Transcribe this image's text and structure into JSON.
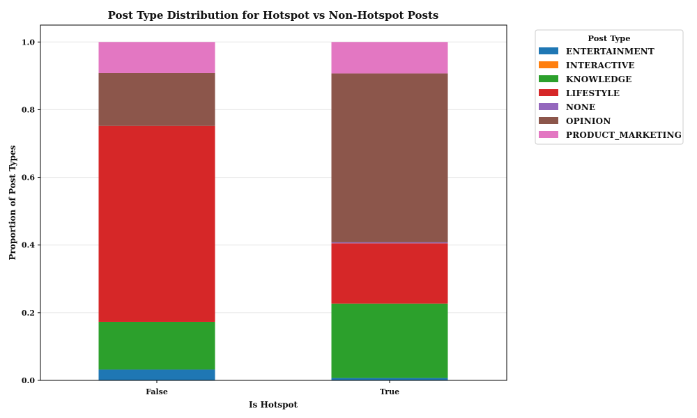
{
  "chart_data": {
    "type": "bar",
    "stacked": true,
    "title": "Post Type Distribution for Hotspot vs Non-Hotspot Posts",
    "xlabel": "Is Hotspot",
    "ylabel": "Proportion of Post Types",
    "categories": [
      "False",
      "True"
    ],
    "ylim": [
      0,
      1.05
    ],
    "yticks": [
      "0.0",
      "0.2",
      "0.4",
      "0.6",
      "0.8",
      "1.0"
    ],
    "ytick_values": [
      0,
      0.2,
      0.4,
      0.6,
      0.8,
      1.0
    ],
    "grid": true,
    "legend": {
      "title": "Post Type",
      "placement": "outside-right-top"
    },
    "series": [
      {
        "name": "ENTERTAINMENT",
        "color": "#1f77b4",
        "values": [
          0.032,
          0.007
        ]
      },
      {
        "name": "INTERACTIVE",
        "color": "#ff7f0e",
        "values": [
          0.0,
          0.0
        ]
      },
      {
        "name": "KNOWLEDGE",
        "color": "#2ca02c",
        "values": [
          0.141,
          0.22
        ]
      },
      {
        "name": "LIFESTYLE",
        "color": "#d62728",
        "values": [
          0.579,
          0.178
        ]
      },
      {
        "name": "NONE",
        "color": "#9467bd",
        "values": [
          0.0,
          0.003
        ]
      },
      {
        "name": "OPINION",
        "color": "#8c564b",
        "values": [
          0.156,
          0.499
        ]
      },
      {
        "name": "PRODUCT_MARKETING",
        "color": "#e377c2",
        "values": [
          0.092,
          0.093
        ]
      }
    ]
  }
}
